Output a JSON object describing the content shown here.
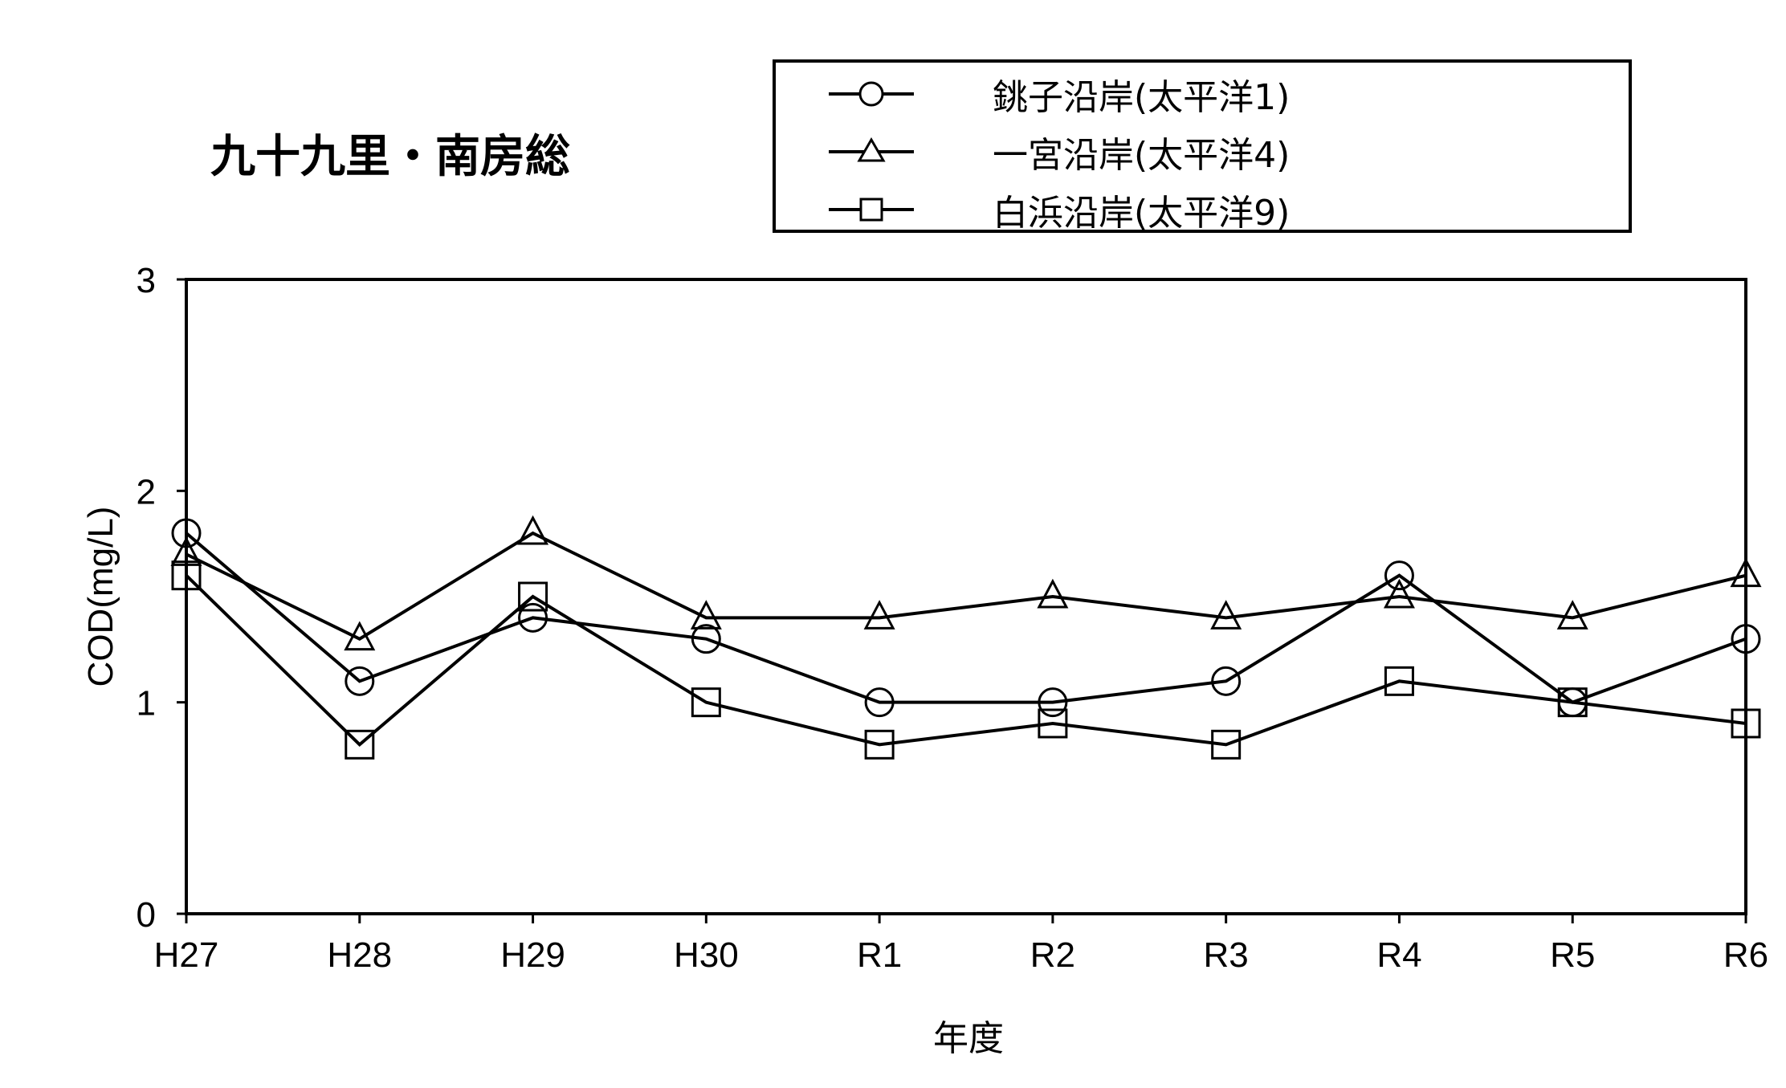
{
  "chart_data": {
    "type": "line",
    "title": "九十九里・南房総",
    "xlabel": "年度",
    "ylabel": "COD(mg/L)",
    "ylim": [
      0,
      3
    ],
    "yticks": [
      "0",
      "1",
      "2",
      "3"
    ],
    "categories": [
      "H27",
      "H28",
      "H29",
      "H30",
      "R1",
      "R2",
      "R3",
      "R4",
      "R5",
      "R6"
    ],
    "legend_position": "top-right",
    "grid": false,
    "series": [
      {
        "name": "銚子沿岸(太平洋1)",
        "marker": "circle",
        "values": [
          1.8,
          1.1,
          1.4,
          1.3,
          1.0,
          1.0,
          1.1,
          1.6,
          1.0,
          1.3
        ]
      },
      {
        "name": "一宮沿岸(太平洋4)",
        "marker": "triangle",
        "values": [
          1.7,
          1.3,
          1.8,
          1.4,
          1.4,
          1.5,
          1.4,
          1.5,
          1.4,
          1.6
        ]
      },
      {
        "name": "白浜沿岸(太平洋9)",
        "marker": "square",
        "values": [
          1.6,
          0.8,
          1.5,
          1.0,
          0.8,
          0.9,
          0.8,
          1.1,
          1.0,
          0.9
        ]
      }
    ]
  }
}
